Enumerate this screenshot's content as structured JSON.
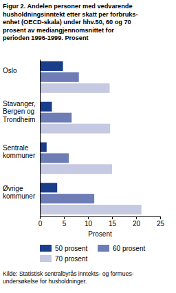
{
  "chart_data": {
    "type": "bar",
    "orientation": "horizontal",
    "title": "Figur 2.  Andelen personer med vedvarende\nhusholdningsinntekt etter skatt per forbruks-\nenhet (OECD-skala) under hhv.50, 60 og 70\nprosent av mediangjennomsnittet for\nperioden 1996-1999. Prosent",
    "categories": [
      "Oslo",
      "Stavanger,\nBergen og\nTrondheim",
      "Sentrale\nkommuner",
      "Øvrige\nkommuner"
    ],
    "series": [
      {
        "name": "50 prosent",
        "color": "#1b3e8c",
        "values": [
          4.8,
          2.5,
          1.4,
          3.6
        ]
      },
      {
        "name": "60 prosent",
        "color": "#6e7db6",
        "values": [
          8.1,
          6.6,
          6.0,
          11.3
        ]
      },
      {
        "name": "70 prosent",
        "color": "#c5c9e1",
        "values": [
          14.5,
          14.6,
          15.0,
          21.1
        ]
      }
    ],
    "x_label": "Prosent",
    "xlim": [
      0,
      25
    ],
    "xticks": [
      0,
      5,
      10,
      15,
      20,
      25
    ],
    "grid": false,
    "legend": "bottom",
    "source": "Kilde: Statistisk sentralbyrås inntekts- og formues-\nundersøkelse for husholdninger."
  }
}
